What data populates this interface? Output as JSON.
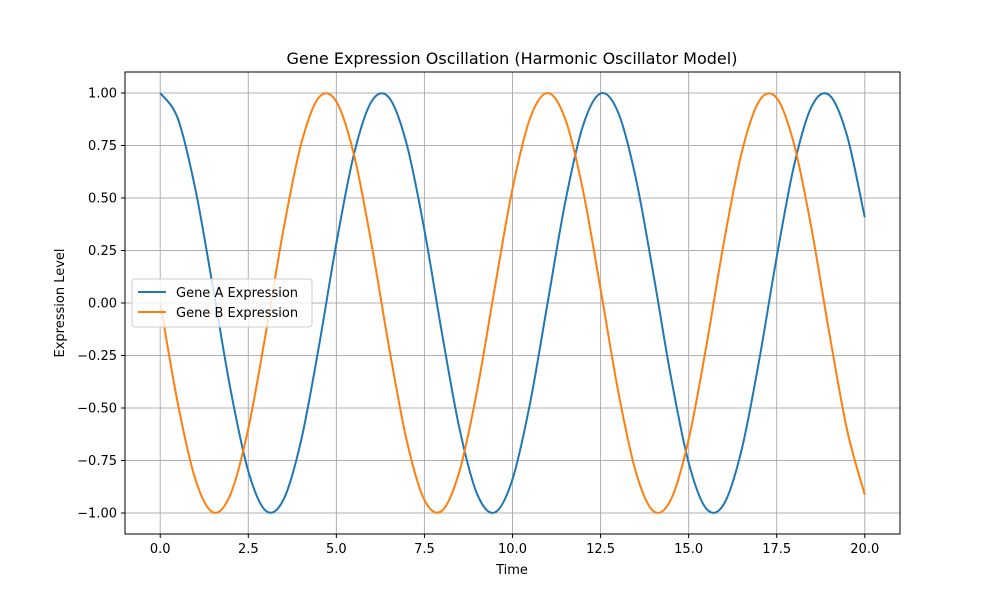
{
  "chart_data": {
    "type": "line",
    "title": "Gene Expression Oscillation (Harmonic Oscillator Model)",
    "xlabel": "Time",
    "ylabel": "Expression Level",
    "xlim": [
      -1.0,
      21.0
    ],
    "ylim": [
      -1.1,
      1.1
    ],
    "grid": true,
    "legend_position": "center-left",
    "x_ticks": [
      0.0,
      2.5,
      5.0,
      7.5,
      10.0,
      12.5,
      15.0,
      17.5,
      20.0
    ],
    "x_tick_labels": [
      "0.0",
      "2.5",
      "5.0",
      "7.5",
      "10.0",
      "12.5",
      "15.0",
      "17.5",
      "20.0"
    ],
    "y_ticks": [
      -1.0,
      -0.75,
      -0.5,
      -0.25,
      0.0,
      0.25,
      0.5,
      0.75,
      1.0
    ],
    "y_tick_labels": [
      "−1.00",
      "−0.75",
      "−0.50",
      "−0.25",
      "0.00",
      "0.25",
      "0.50",
      "0.75",
      "1.00"
    ],
    "x": [
      0,
      0.5,
      1,
      1.5,
      2,
      2.5,
      3,
      3.5,
      4,
      4.5,
      5,
      5.5,
      6,
      6.5,
      7,
      7.5,
      8,
      8.5,
      9,
      9.5,
      10,
      10.5,
      11,
      11.5,
      12,
      12.5,
      13,
      13.5,
      14,
      14.5,
      15,
      15.5,
      16,
      16.5,
      17,
      17.5,
      18,
      18.5,
      19,
      19.5,
      20
    ],
    "series": [
      {
        "name": "Gene A Expression",
        "color": "#1f77b4",
        "values": [
          1.0,
          0.878,
          0.54,
          0.071,
          -0.416,
          -0.801,
          -0.99,
          -0.936,
          -0.654,
          -0.211,
          0.284,
          0.709,
          0.96,
          0.977,
          0.754,
          0.347,
          -0.146,
          -0.602,
          -0.911,
          -0.997,
          -0.839,
          -0.476,
          0.004,
          0.483,
          0.844,
          0.998,
          0.907,
          0.595,
          0.137,
          -0.354,
          -0.76,
          -0.979,
          -0.958,
          -0.702,
          -0.275,
          0.219,
          0.66,
          0.939,
          0.989,
          0.795,
          0.408
        ]
      },
      {
        "name": "Gene B Expression",
        "color": "#ff7f0e",
        "values": [
          0.0,
          -0.479,
          -0.841,
          -0.997,
          -0.909,
          -0.598,
          -0.141,
          0.351,
          0.757,
          0.978,
          0.959,
          0.706,
          0.279,
          -0.215,
          -0.657,
          -0.938,
          -0.989,
          -0.798,
          -0.412,
          0.075,
          0.544,
          0.88,
          1.0,
          0.875,
          0.537,
          0.066,
          -0.42,
          -0.804,
          -0.991,
          -0.935,
          -0.65,
          -0.207,
          0.288,
          0.712,
          0.961,
          0.976,
          0.751,
          0.343,
          -0.15,
          -0.606,
          -0.913
        ]
      }
    ]
  }
}
